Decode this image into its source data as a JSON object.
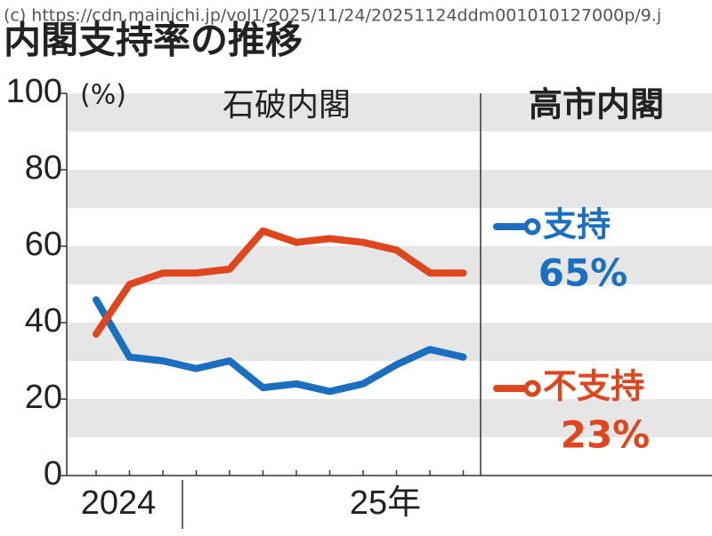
{
  "source": "(c) https://cdn.mainichi.jp/vol1/2025/11/24/20251124ddm001010127000p/9.j",
  "chart_data": {
    "type": "line",
    "title": "内閣支持率の推移",
    "y_unit": "(%)",
    "categories": [
      "2024",
      null,
      null,
      null,
      null,
      null,
      null,
      null,
      "25年",
      null,
      null,
      null
    ],
    "series": [
      {
        "name": "支持",
        "color": "#1a6fc0",
        "values": [
          46,
          31,
          30,
          28,
          30,
          23,
          24,
          22,
          24,
          29,
          33,
          31
        ]
      },
      {
        "name": "不支持",
        "color": "#e0461e",
        "values": [
          37,
          50,
          53,
          53,
          54,
          64,
          61,
          62,
          61,
          59,
          53,
          53
        ]
      }
    ],
    "series_annotations": [
      "65%",
      "23%"
    ],
    "period_labels": [
      "石破内閣",
      "高市内閣"
    ],
    "ylim": [
      0,
      100
    ],
    "yticks": [
      0,
      20,
      40,
      60,
      80,
      100
    ],
    "grid": true
  }
}
